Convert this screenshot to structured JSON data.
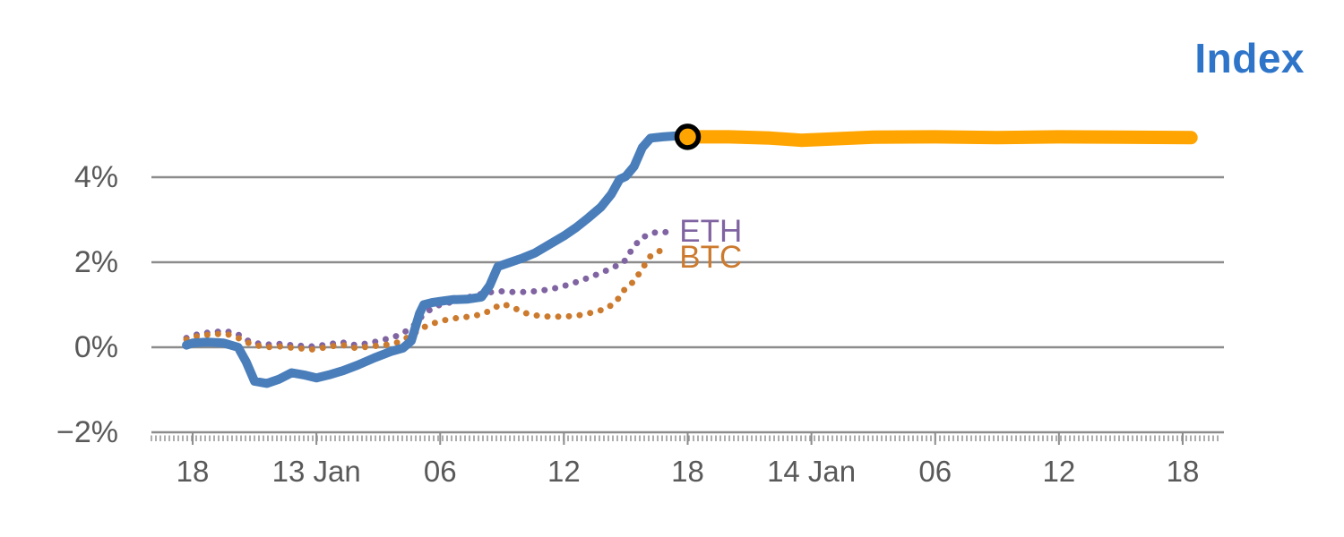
{
  "page": {
    "background": "#FFFFFF"
  },
  "chart_data": {
    "type": "line",
    "title": "Index",
    "x_axis": {
      "unit": "time (6-hour ticks, Jan 12 18:00 through Jan 14 18:00)",
      "ticks": [
        {
          "hour": 0,
          "label": "18"
        },
        {
          "hour": 6,
          "label": "13 Jan"
        },
        {
          "hour": 12,
          "label": "06"
        },
        {
          "hour": 18,
          "label": "12"
        },
        {
          "hour": 24,
          "label": "18"
        },
        {
          "hour": 30,
          "label": "14 Jan"
        },
        {
          "hour": 36,
          "label": "06"
        },
        {
          "hour": 42,
          "label": "12"
        },
        {
          "hour": 48,
          "label": "18"
        }
      ]
    },
    "y_axis": {
      "unit": "percent change",
      "range": [
        -2.4,
        5.6
      ],
      "gridline_values": [
        4,
        2,
        0,
        -2
      ],
      "ticks": [
        {
          "value": 4,
          "label": "4%"
        },
        {
          "value": 2,
          "label": "2%"
        },
        {
          "value": 0,
          "label": "0%"
        },
        {
          "value": -2,
          "label": "−2%"
        }
      ]
    },
    "series": [
      {
        "id": "eth",
        "name": "ETH",
        "color": "#8064A2",
        "line_style": "dotted",
        "stroke_width": 7,
        "points": [
          [
            -0.3,
            0.22
          ],
          [
            0,
            0.28
          ],
          [
            0.8,
            0.35
          ],
          [
            1.6,
            0.38
          ],
          [
            2.2,
            0.3
          ],
          [
            2.8,
            0.12
          ],
          [
            3.5,
            0.06
          ],
          [
            4.2,
            0.08
          ],
          [
            5,
            0.04
          ],
          [
            5.8,
            0.02
          ],
          [
            6.5,
            0.06
          ],
          [
            7.2,
            0.12
          ],
          [
            7.9,
            0.05
          ],
          [
            8.6,
            0.1
          ],
          [
            9.3,
            0.18
          ],
          [
            10,
            0.28
          ],
          [
            10.6,
            0.45
          ],
          [
            11.1,
            0.72
          ],
          [
            11.6,
            0.92
          ],
          [
            12,
            1
          ],
          [
            12.7,
            1.08
          ],
          [
            13.4,
            1.18
          ],
          [
            14.1,
            1.27
          ],
          [
            14.8,
            1.32
          ],
          [
            15.5,
            1.3
          ],
          [
            16.2,
            1.3
          ],
          [
            17,
            1.34
          ],
          [
            17.7,
            1.4
          ],
          [
            18.4,
            1.5
          ],
          [
            19.1,
            1.62
          ],
          [
            19.8,
            1.75
          ],
          [
            20.4,
            1.88
          ],
          [
            20.9,
            2
          ],
          [
            21.3,
            2.3
          ],
          [
            21.7,
            2.55
          ],
          [
            22.2,
            2.68
          ],
          [
            22.7,
            2.72
          ],
          [
            23.1,
            2.7
          ]
        ]
      },
      {
        "id": "btc",
        "name": "BTC",
        "color": "#CC7A2E",
        "line_style": "dotted",
        "stroke_width": 7,
        "points": [
          [
            -0.3,
            0.18
          ],
          [
            0,
            0.24
          ],
          [
            0.8,
            0.3
          ],
          [
            1.6,
            0.32
          ],
          [
            2.2,
            0.22
          ],
          [
            2.8,
            0.08
          ],
          [
            3.5,
            0
          ],
          [
            4.2,
            0.02
          ],
          [
            5,
            -0.02
          ],
          [
            5.8,
            -0.05
          ],
          [
            6.5,
            0
          ],
          [
            7.2,
            0.06
          ],
          [
            7.9,
            -0.02
          ],
          [
            8.6,
            0.02
          ],
          [
            9.3,
            0.05
          ],
          [
            10,
            0.12
          ],
          [
            10.6,
            0.28
          ],
          [
            11.1,
            0.45
          ],
          [
            11.6,
            0.55
          ],
          [
            12,
            0.62
          ],
          [
            12.7,
            0.68
          ],
          [
            13.4,
            0.72
          ],
          [
            14.1,
            0.78
          ],
          [
            14.6,
            0.92
          ],
          [
            15,
            1.02
          ],
          [
            15.5,
            0.95
          ],
          [
            16,
            0.82
          ],
          [
            16.6,
            0.75
          ],
          [
            17.3,
            0.72
          ],
          [
            18,
            0.72
          ],
          [
            18.7,
            0.75
          ],
          [
            19.4,
            0.82
          ],
          [
            20,
            0.9
          ],
          [
            20.5,
            1.05
          ],
          [
            21,
            1.4
          ],
          [
            21.4,
            1.55
          ],
          [
            21.8,
            1.85
          ],
          [
            22.2,
            2.15
          ],
          [
            22.7,
            2.28
          ],
          [
            23.1,
            2.33
          ]
        ]
      },
      {
        "id": "index-history",
        "name": "Index",
        "color": "#4A7EBB",
        "line_style": "solid",
        "stroke_width": 10,
        "points": [
          [
            -0.3,
            0.05
          ],
          [
            0,
            0.1
          ],
          [
            0.7,
            0.12
          ],
          [
            1.5,
            0.1
          ],
          [
            2.2,
            0
          ],
          [
            2.6,
            -0.35
          ],
          [
            3,
            -0.8
          ],
          [
            3.6,
            -0.85
          ],
          [
            4.2,
            -0.75
          ],
          [
            4.8,
            -0.6
          ],
          [
            5.4,
            -0.65
          ],
          [
            6,
            -0.72
          ],
          [
            6.6,
            -0.65
          ],
          [
            7.3,
            -0.55
          ],
          [
            8,
            -0.42
          ],
          [
            8.8,
            -0.25
          ],
          [
            9.6,
            -0.1
          ],
          [
            10.2,
            -0.02
          ],
          [
            10.6,
            0.15
          ],
          [
            11,
            0.8
          ],
          [
            11.2,
            1
          ],
          [
            11.6,
            1.05
          ],
          [
            12,
            1.08
          ],
          [
            12.6,
            1.12
          ],
          [
            13.3,
            1.13
          ],
          [
            14,
            1.18
          ],
          [
            14.4,
            1.45
          ],
          [
            14.8,
            1.9
          ],
          [
            15.3,
            1.98
          ],
          [
            16,
            2.1
          ],
          [
            16.6,
            2.22
          ],
          [
            17.3,
            2.42
          ],
          [
            18,
            2.62
          ],
          [
            18.6,
            2.82
          ],
          [
            19.2,
            3.05
          ],
          [
            19.8,
            3.3
          ],
          [
            20.3,
            3.6
          ],
          [
            20.7,
            3.95
          ],
          [
            21,
            4.02
          ],
          [
            21.4,
            4.25
          ],
          [
            21.8,
            4.7
          ],
          [
            22.2,
            4.92
          ],
          [
            22.8,
            4.95
          ],
          [
            23.4,
            4.97
          ],
          [
            24,
            4.95
          ]
        ]
      },
      {
        "id": "index-projection",
        "name": "Index",
        "color": "#FFA400",
        "line_style": "solid",
        "stroke_width": 15,
        "points": [
          [
            24,
            4.95
          ],
          [
            26,
            4.95
          ],
          [
            28,
            4.92
          ],
          [
            29.5,
            4.87
          ],
          [
            31,
            4.9
          ],
          [
            33,
            4.94
          ],
          [
            36,
            4.95
          ],
          [
            39,
            4.93
          ],
          [
            42,
            4.95
          ],
          [
            45,
            4.94
          ],
          [
            48.4,
            4.93
          ]
        ]
      }
    ],
    "marker": {
      "x_hour": 24,
      "y_pct": 4.95,
      "fill": "#FFA400",
      "ring_color": "#000000"
    },
    "annotations": [
      {
        "text": "ETH",
        "color": "#8064A2",
        "x_hour": 23.6,
        "y_pct": 2.74
      },
      {
        "text": "BTC",
        "color": "#CC7A2E",
        "x_hour": 23.6,
        "y_pct": 2.13
      }
    ],
    "colors": {
      "title": "#2E75C9",
      "axis_label": "#595959",
      "gridline": "#8C8C8C",
      "axis_tick": "#9A9A9A"
    },
    "legend_position": "inline-labels"
  }
}
